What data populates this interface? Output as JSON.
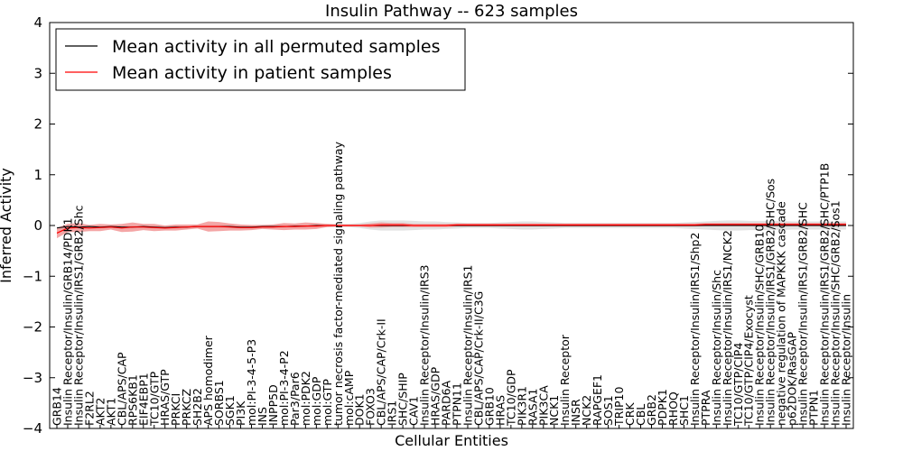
{
  "chart_data": {
    "type": "line",
    "title": "Insulin Pathway -- 623 samples",
    "xlabel": "Cellular Entities",
    "ylabel": "Inferred Activity",
    "ylim": [
      -4,
      4
    ],
    "yticks": [
      -4,
      -3,
      -2,
      -1,
      0,
      1,
      2,
      3,
      4
    ],
    "grid": false,
    "legend_position": "top-left",
    "categories": [
      "GRB14",
      "Insulin Receptor/Insulin/GRB14/PDK1",
      "Insulin Receptor/Insulin/IRS1/GRB2/Shc",
      "F2RL2",
      "AKT2",
      "AKT1",
      "CBL/APS/CAP",
      "RPS6KB1",
      "EIF4EBP1",
      "TC10/GTP",
      "HRAS/GTP",
      "PRKCI",
      "PRKCZ",
      "SH2B2",
      "APS homodimer",
      "SORBS1",
      "SGK1",
      "PI3K",
      "mol:PI-3-4-5-P3",
      "INS",
      "INPP5D",
      "mol:PI-3-4-P2",
      "Par3/Par6",
      "mol:PDK2",
      "mol:GDP",
      "mol:GTP",
      "tumor necrosis factor-mediated signaling pathway",
      "mol:cAMP",
      "DOK1",
      "FOXO3",
      "CBL/APS/CAP/Crk-II",
      "IRS1",
      "SHC/SHIP",
      "CAV1",
      "Insulin Receptor/Insulin/IRS3",
      "HRAS/GDP",
      "PARD6A",
      "PTPN11",
      "Insulin Receptor/Insulin/IRS1",
      "CBL/APS/CAP/Crk-II/C3G",
      "GRB10",
      "HRAS",
      "TC10/GDP",
      "PIK3R1",
      "RASA1",
      "PIK3CA",
      "NCK1",
      "Insulin Receptor",
      "INSR",
      "NCK2",
      "RAPGEF1",
      "SOS1",
      "TRIP10",
      "CRK",
      "CBL",
      "GRB2",
      "PDPK1",
      "RHOQ",
      "SHC1",
      "Insulin Receptor/Insulin/IRS1/Shp2",
      "PTPRA",
      "Insulin Receptor/Insulin/Shc",
      "Insulin Receptor/Insulin/IRS1/NCK2",
      "TC10/GTP/CIP4",
      "TC10/GTP/CIP4/Exocyst",
      "Insulin Receptor/Insulin/SHC/GRB10",
      "Insulin Receptor/Insulin/IRS1/GRB2/SHC/Sos",
      "negative regulation of MAPKKK cascade",
      "p62DOK/RasGAP",
      "Insulin Receptor/Insulin/IRS1/GRB2/SHC",
      "PTPN1",
      "Insulin Receptor/Insulin/IRS1/GRB2/SHC/PTP1B",
      "Insulin Receptor/Insulin/SHC/GRB2/Sos1",
      "Insulin Receptor/Insulin"
    ],
    "series": [
      {
        "name": "Mean activity in all permuted samples",
        "color": "#000000",
        "band_color": "#cccccc",
        "values": [
          -0.05,
          -0.02,
          -0.03,
          -0.02,
          -0.03,
          -0.02,
          -0.03,
          -0.03,
          -0.02,
          -0.03,
          -0.04,
          -0.03,
          -0.03,
          -0.02,
          -0.02,
          -0.02,
          -0.02,
          -0.03,
          -0.03,
          -0.02,
          -0.02,
          -0.02,
          -0.01,
          -0.01,
          0.0,
          0.0,
          0.0,
          0.0,
          0.0,
          0.0,
          0.0,
          0.0,
          0.0,
          0.0,
          0.0,
          0.0,
          0.0,
          0.0,
          0.0,
          0.0,
          0.0,
          0.0,
          0.0,
          0.0,
          0.0,
          0.0,
          0.0,
          0.0,
          0.0,
          0.0,
          0.0,
          0.0,
          0.0,
          0.0,
          0.0,
          0.0,
          0.0,
          0.0,
          0.0,
          0.0,
          0.0,
          0.0,
          0.0,
          0.0,
          0.0,
          0.0,
          0.0,
          0.0,
          0.0,
          0.0,
          0.0,
          0.0,
          0.0,
          0.0
        ],
        "band": [
          0.03,
          0.03,
          0.03,
          0.03,
          0.03,
          0.03,
          0.03,
          0.03,
          0.03,
          0.03,
          0.03,
          0.03,
          0.03,
          0.03,
          0.03,
          0.03,
          0.03,
          0.03,
          0.03,
          0.03,
          0.03,
          0.03,
          0.03,
          0.03,
          0.03,
          0.03,
          0.03,
          0.03,
          0.05,
          0.08,
          0.1,
          0.1,
          0.1,
          0.09,
          0.08,
          0.08,
          0.07,
          0.06,
          0.05,
          0.05,
          0.05,
          0.06,
          0.07,
          0.08,
          0.08,
          0.07,
          0.06,
          0.05,
          0.05,
          0.05,
          0.05,
          0.05,
          0.05,
          0.05,
          0.05,
          0.05,
          0.05,
          0.05,
          0.06,
          0.07,
          0.08,
          0.09,
          0.1,
          0.1,
          0.09,
          0.09,
          0.09,
          0.09,
          0.08,
          0.08,
          0.08,
          0.08,
          0.08,
          0.08
        ]
      },
      {
        "name": "Mean activity in patient samples",
        "color": "#ff0000",
        "band_color": "#f08080",
        "values": [
          -0.15,
          -0.05,
          -0.04,
          -0.05,
          -0.04,
          -0.03,
          -0.05,
          -0.03,
          -0.03,
          -0.04,
          -0.05,
          -0.04,
          -0.03,
          -0.02,
          -0.02,
          -0.02,
          -0.03,
          -0.04,
          -0.04,
          -0.03,
          -0.03,
          -0.02,
          -0.02,
          -0.01,
          -0.01,
          0.0,
          0.0,
          0.0,
          0.0,
          0.0,
          0.01,
          0.01,
          0.01,
          0.0,
          0.0,
          0.0,
          0.0,
          0.01,
          0.01,
          0.01,
          0.01,
          0.01,
          0.01,
          0.01,
          0.01,
          0.01,
          0.01,
          0.01,
          0.01,
          0.01,
          0.01,
          0.01,
          0.01,
          0.01,
          0.01,
          0.01,
          0.01,
          0.01,
          0.01,
          0.01,
          0.02,
          0.02,
          0.02,
          0.02,
          0.02,
          0.02,
          0.02,
          0.02,
          0.02,
          0.02,
          0.02,
          0.02,
          0.02,
          0.02
        ],
        "band": [
          0.1,
          0.08,
          0.09,
          0.06,
          0.07,
          0.05,
          0.08,
          0.09,
          0.06,
          0.07,
          0.05,
          0.06,
          0.05,
          0.04,
          0.1,
          0.09,
          0.07,
          0.06,
          0.05,
          0.04,
          0.05,
          0.07,
          0.06,
          0.07,
          0.06,
          0.03,
          0.02,
          0.02,
          0.02,
          0.04,
          0.05,
          0.04,
          0.04,
          0.03,
          0.03,
          0.03,
          0.03,
          0.03,
          0.03,
          0.03,
          0.03,
          0.03,
          0.03,
          0.03,
          0.03,
          0.03,
          0.03,
          0.03,
          0.03,
          0.03,
          0.03,
          0.03,
          0.03,
          0.03,
          0.03,
          0.03,
          0.03,
          0.03,
          0.03,
          0.03,
          0.03,
          0.03,
          0.03,
          0.03,
          0.03,
          0.03,
          0.03,
          0.03,
          0.03,
          0.03,
          0.03,
          0.03,
          0.03,
          0.03
        ]
      }
    ]
  }
}
